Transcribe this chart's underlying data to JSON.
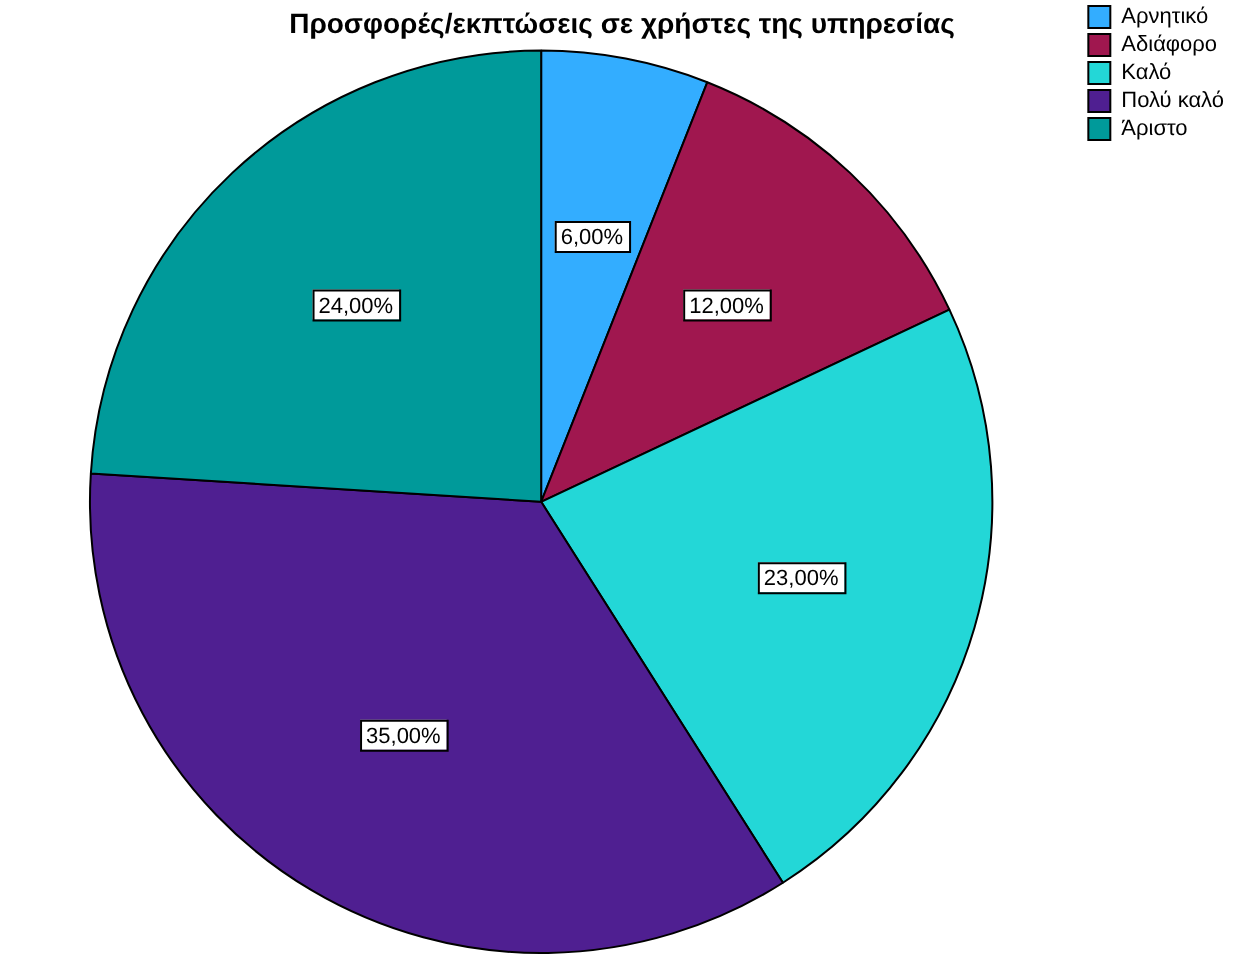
{
  "chart_data": {
    "type": "pie",
    "title": "Προσφορές/εκπτώσεις σε χρήστες της υπηρεσίας",
    "categories": [
      "Αρνητικό",
      "Αδιάφορο",
      "Καλό",
      "Πολύ καλό",
      "Άριστο"
    ],
    "values": [
      6,
      12,
      23,
      35,
      24
    ],
    "colors": [
      "#33adff",
      "#a0174f",
      "#23d7d7",
      "#4f1f91",
      "#009a9a"
    ],
    "value_labels": [
      "6,00%",
      "12,00%",
      "23,00%",
      "35,00%",
      "24,00%"
    ],
    "legend": "top right"
  }
}
